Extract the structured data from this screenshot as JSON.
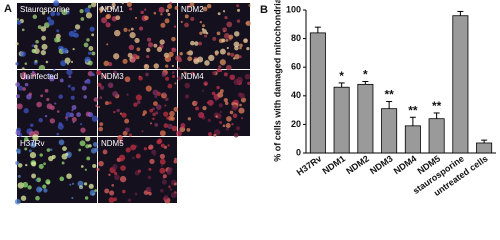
{
  "panel_a": {
    "label": "A",
    "images": [
      "Staurosporine",
      "NDM1",
      "NDM2",
      "Uninfected",
      "NDM3",
      "NDM4",
      "H37Rv",
      "NDM5"
    ]
  },
  "chart_data": {
    "type": "bar",
    "panel_label": "B",
    "y_label": "% of cells with damaged mitochondria",
    "categories": [
      "H37Rv",
      "NDM1",
      "NDM2",
      "NDM3",
      "NDM4",
      "NDM5",
      "staurosporine",
      "untreated cells"
    ],
    "values": [
      84,
      46,
      48,
      31,
      19,
      24,
      96,
      7
    ],
    "errors": [
      4,
      3,
      2,
      5,
      6,
      4,
      3,
      2
    ],
    "annotations": [
      {
        "category": "NDM1",
        "text": "*"
      },
      {
        "category": "NDM2",
        "text": "*"
      },
      {
        "category": "NDM3",
        "text": "**"
      },
      {
        "category": "NDM4",
        "text": "**"
      },
      {
        "category": "NDM5",
        "text": "**"
      }
    ],
    "color": "#9a9a9a",
    "ylim": [
      0,
      100
    ],
    "yticks": [
      0,
      20,
      40,
      60,
      80,
      100
    ]
  }
}
